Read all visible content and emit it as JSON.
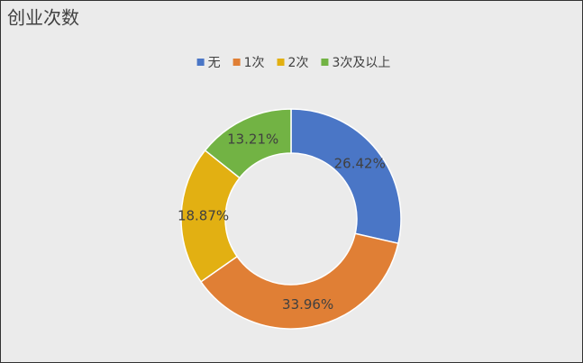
{
  "chart_data": {
    "type": "donut",
    "title": "创业次数",
    "categories": [
      "无",
      "1次",
      "2次",
      "3次及以上"
    ],
    "values": [
      26.42,
      33.96,
      18.87,
      13.21
    ],
    "value_labels": [
      "26.42%",
      "33.96%",
      "18.87%",
      "13.21%"
    ],
    "colors": [
      "#4a76c6",
      "#e07f35",
      "#e2b012",
      "#72b344"
    ],
    "legend": "top"
  }
}
